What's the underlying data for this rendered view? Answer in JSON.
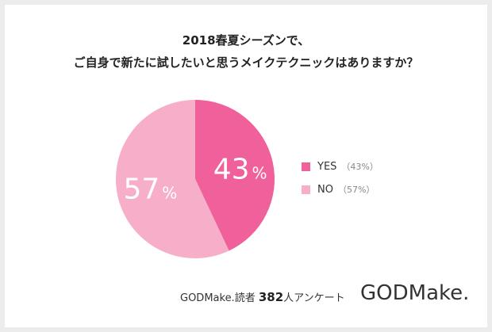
{
  "title": {
    "line1": "2018春夏シーズンで、",
    "line2": "ご自身で新たに試したいと思うメイクテクニックはありますか？"
  },
  "chart_data": {
    "type": "pie",
    "slices": [
      {
        "label": "YES",
        "value": 43,
        "display": "43",
        "legend_pct": "（43%）",
        "color": "#f0609a"
      },
      {
        "label": "NO",
        "value": 57,
        "display": "57",
        "legend_pct": "（57%）",
        "color": "#f7aec9"
      }
    ],
    "unit": "%"
  },
  "footer": {
    "prefix": "GODMake.読者 ",
    "count": "382",
    "suffix": "人アンケート",
    "logo": "GODMake."
  }
}
